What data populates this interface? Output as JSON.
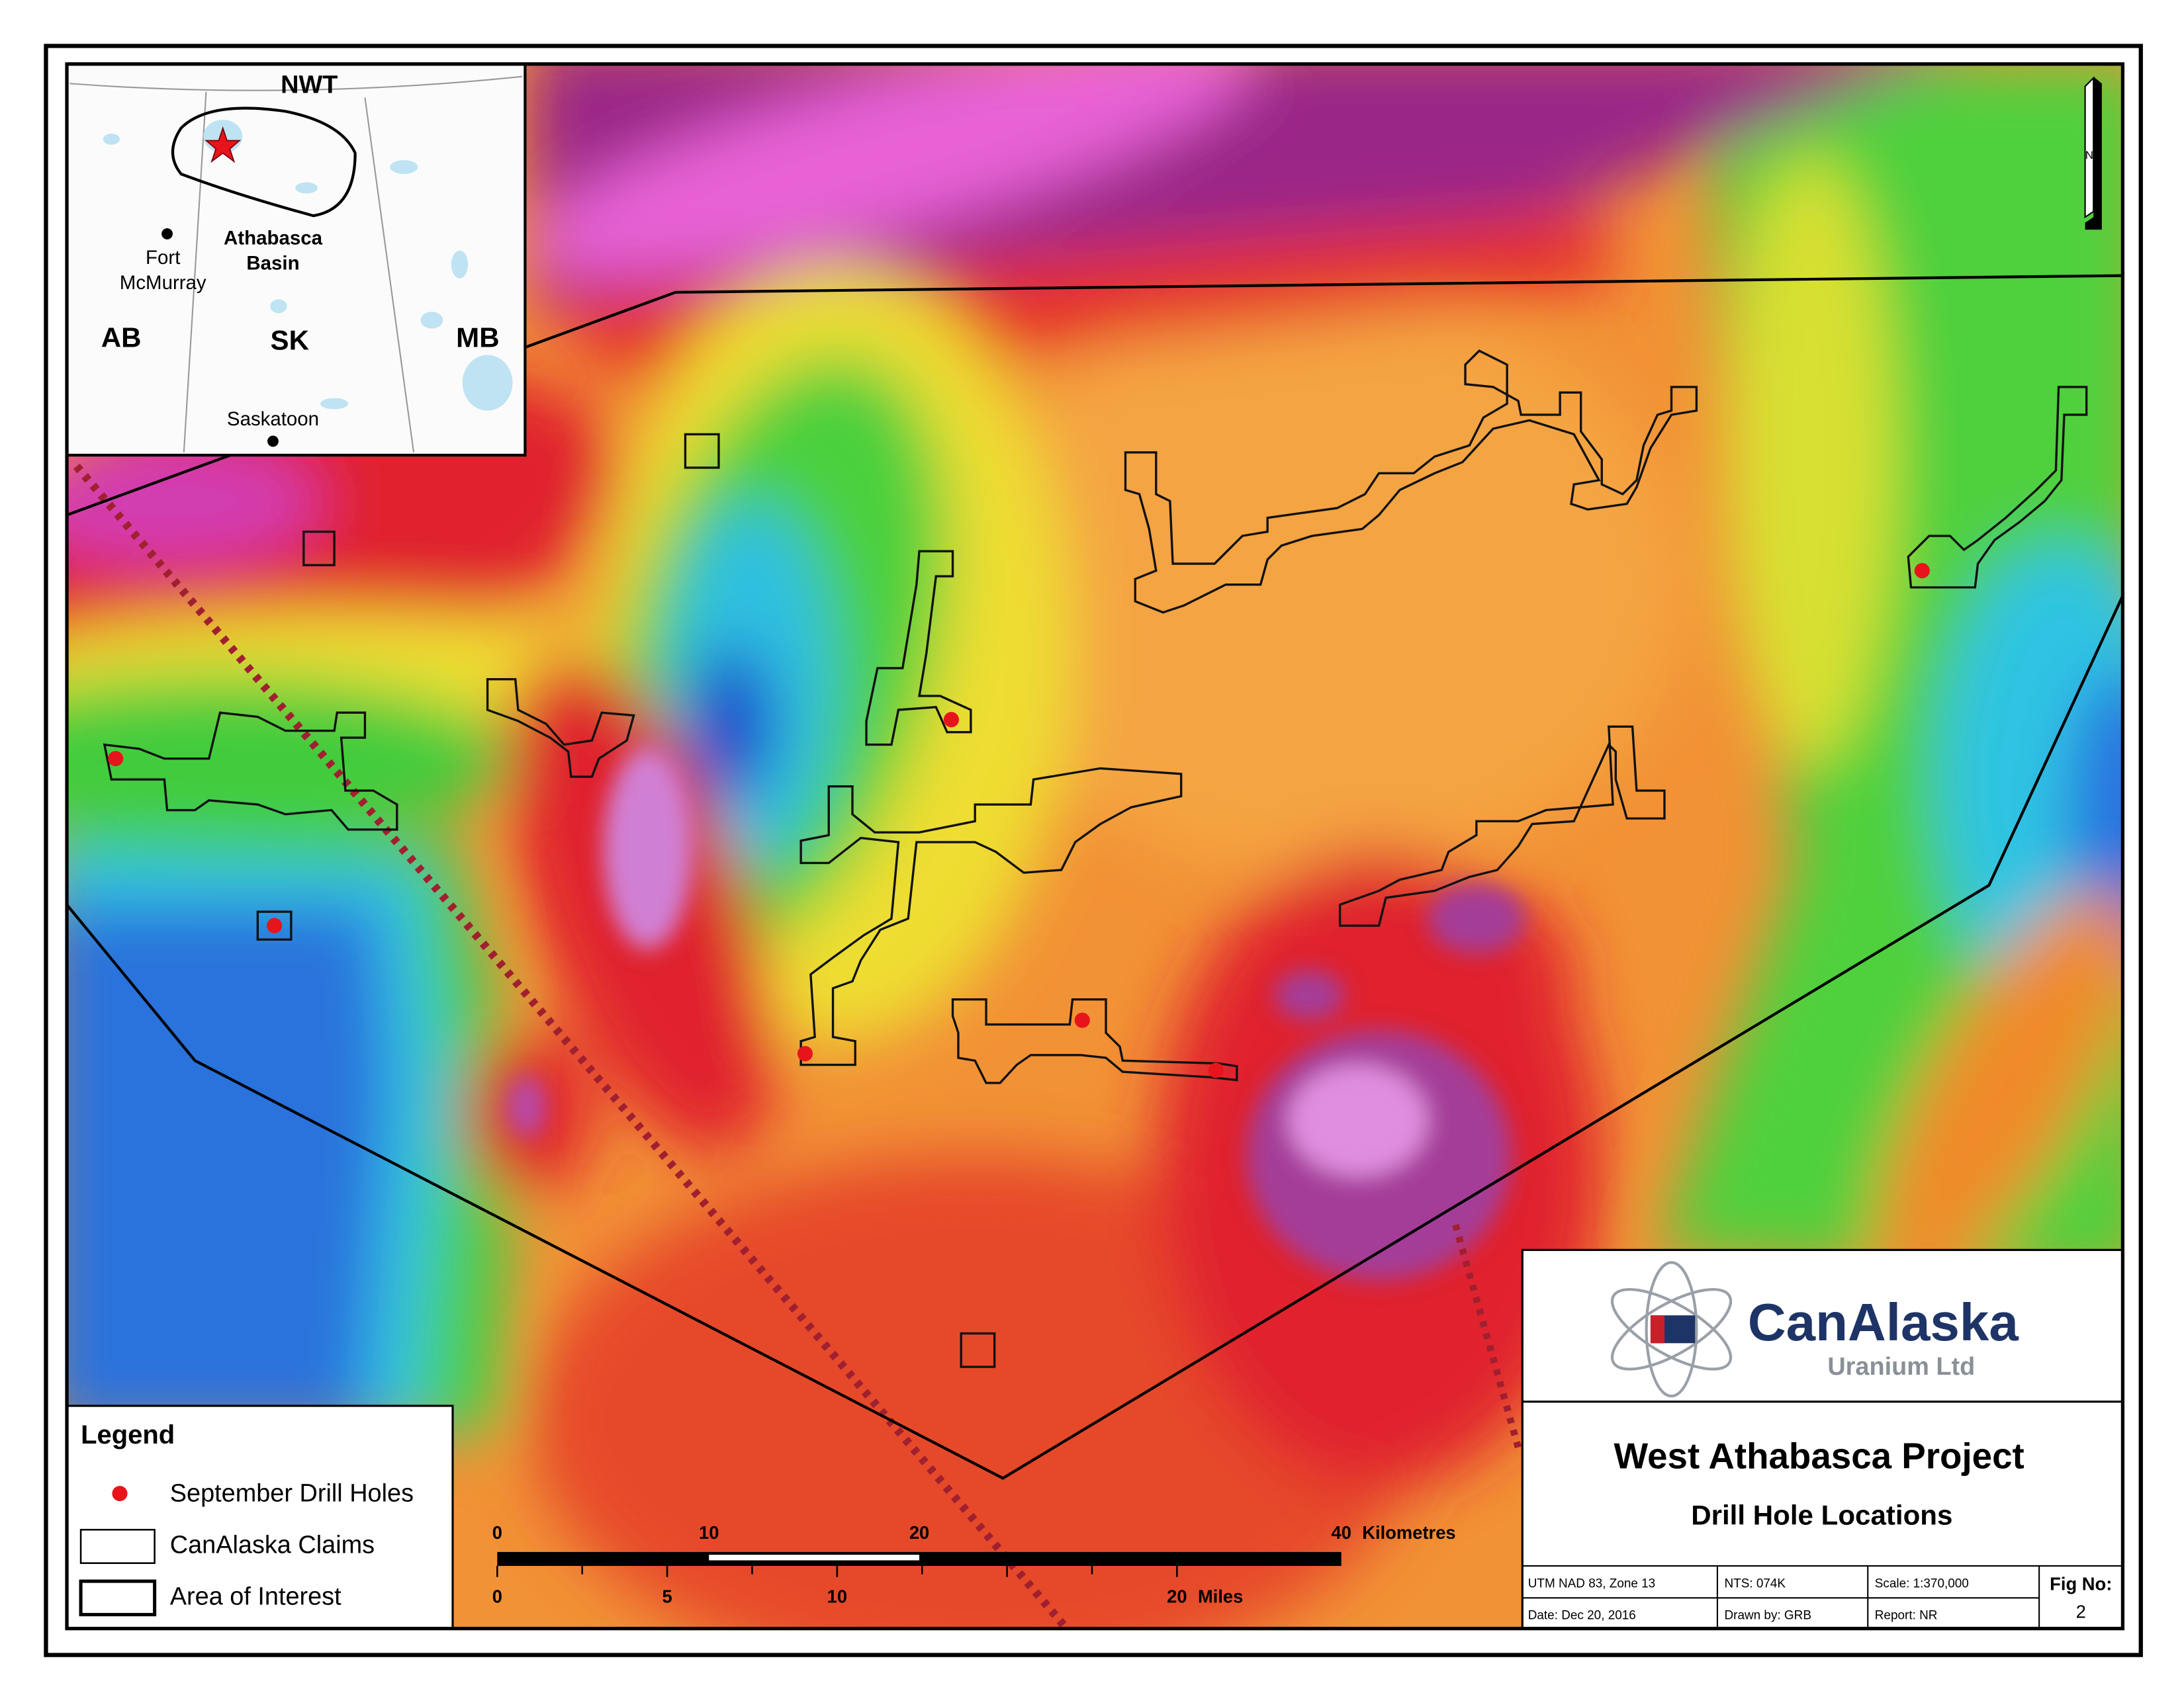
{
  "inset": {
    "nwt": "NWT",
    "athabasca_basin": [
      "Athabasca",
      "Basin"
    ],
    "fort_mcmurray": [
      "Fort",
      "McMurray"
    ],
    "ab": "AB",
    "sk": "SK",
    "mb": "MB",
    "saskatoon": "Saskatoon"
  },
  "north_arrow": "N",
  "legend": {
    "title": "Legend",
    "items": [
      "September Drill Holes",
      "CanAlaska Claims",
      "Area of Interest"
    ]
  },
  "scale_bar": {
    "km_labels": [
      "0",
      "10",
      "20",
      "40"
    ],
    "km_unit": "Kilometres",
    "mile_labels": [
      "0",
      "5",
      "10",
      "20"
    ],
    "mile_unit": "Miles"
  },
  "title_block": {
    "logo_name": "CanAlaska",
    "logo_sub": "Uranium Ltd",
    "title": "West Athabasca Project",
    "subtitle": "Drill Hole Locations",
    "info": [
      [
        "UTM NAD 83, Zone 13",
        "NTS: 074K",
        "Scale: 1:370,000"
      ],
      [
        "Date: Dec 20, 2016",
        "Drawn by: GRB",
        "Report: NR"
      ]
    ],
    "fig_label": "Fig No:",
    "fig_number": "2"
  }
}
